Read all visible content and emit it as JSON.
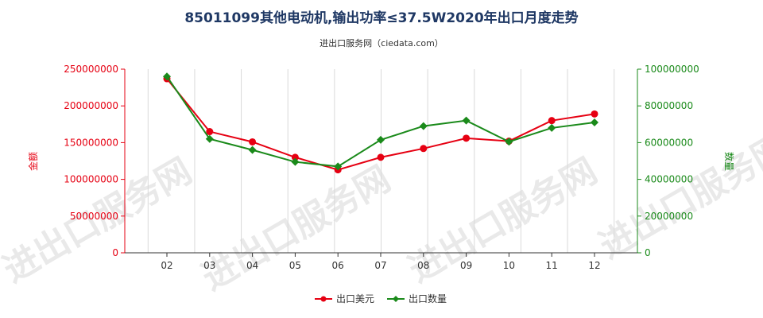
{
  "chart_data": {
    "type": "line",
    "title": "85011099其他电动机,输出功率≤37.5W2020年出口月度走势",
    "subtitle": "进出口服务网（ciedata.com）",
    "categories": [
      "02",
      "03",
      "04",
      "05",
      "06",
      "07",
      "08",
      "09",
      "10",
      "11",
      "12"
    ],
    "y_left": {
      "label": "金额",
      "ylim": [
        0,
        250000000
      ],
      "ticks": [
        "0",
        "50000000",
        "100000000",
        "150000000",
        "200000000",
        "250000000"
      ],
      "color": "#e60012"
    },
    "y_right": {
      "label": "数量",
      "ylim": [
        0,
        100000000
      ],
      "ticks": [
        "0",
        "20000000",
        "40000000",
        "60000000",
        "80000000",
        "100000000"
      ],
      "color": "#1a8a1a"
    },
    "series": [
      {
        "name": "出口美元",
        "axis": "left",
        "color": "#e60012",
        "marker": "circle",
        "values": [
          237000000,
          165000000,
          151000000,
          130000000,
          113000000,
          130000000,
          142000000,
          156000000,
          152000000,
          180000000,
          189000000
        ]
      },
      {
        "name": "出口数量",
        "axis": "right",
        "color": "#1a8a1a",
        "marker": "diamond",
        "values": [
          96000000,
          62000000,
          56000000,
          49500000,
          47000000,
          61500000,
          69000000,
          72000000,
          60500000,
          68000000,
          71000000
        ]
      }
    ],
    "grid": "vertical",
    "legend_position": "bottom-center",
    "watermark": "进出口服务网"
  }
}
